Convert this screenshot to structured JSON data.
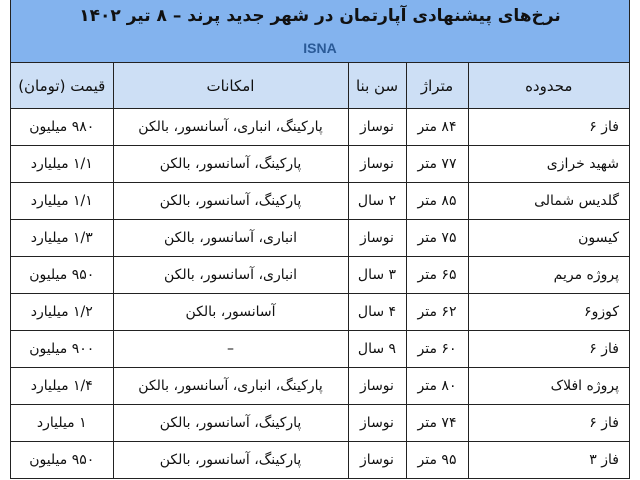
{
  "title": "نرخ‌های پیشنهادی آپارتمان در شهر جدید پرند – ۸ تیر ۱۴۰۲",
  "brand": "ISNA",
  "colors": {
    "title_band": "#83b3ee",
    "header_row": "#cddff5",
    "brand_text": "#2a5a97"
  },
  "columns": [
    "محدوده",
    "متراژ",
    "سن بنا",
    "امکانات",
    "قیمت (تومان)"
  ],
  "rows": [
    [
      "فاز ۶",
      "۸۴ متر",
      "نوساز",
      "پارکینگ، انباری، آسانسور، بالکن",
      "۹۸۰ میلیون"
    ],
    [
      "شهید خرازی",
      "۷۷ متر",
      "نوساز",
      "پارکینگ، آسانسور، بالکن",
      "۱/۱ میلیارد"
    ],
    [
      "گلدیس شمالی",
      "۸۵ متر",
      "۲ سال",
      "پارکینگ، آسانسور، بالکن",
      "۱/۱ میلیارد"
    ],
    [
      "کیسون",
      "۷۵ متر",
      "نوساز",
      "انباری، آسانسور، بالکن",
      "۱/۳ میلیارد"
    ],
    [
      "پروژه مریم",
      "۶۵ متر",
      "۳ سال",
      "انباری، آسانسور، بالکن",
      "۹۵۰ میلیون"
    ],
    [
      "کوزو۶",
      "۶۲ متر",
      "۴ سال",
      "آسانسور، بالکن",
      "۱/۲ میلیارد"
    ],
    [
      "فاز ۶",
      "۶۰ متر",
      "۹ سال",
      "–",
      "۹۰۰ میلیون"
    ],
    [
      "پروژه افلاک",
      "۸۰ متر",
      "نوساز",
      "پارکینگ، انباری، آسانسور، بالکن",
      "۱/۴ میلیارد"
    ],
    [
      "فاز ۶",
      "۷۴ متر",
      "نوساز",
      "پارکینگ، آسانسور، بالکن",
      "۱ میلیارد"
    ],
    [
      "فاز ۳",
      "۹۵ متر",
      "نوساز",
      "پارکینگ، آسانسور، بالکن",
      "۹۵۰ میلیون"
    ]
  ]
}
